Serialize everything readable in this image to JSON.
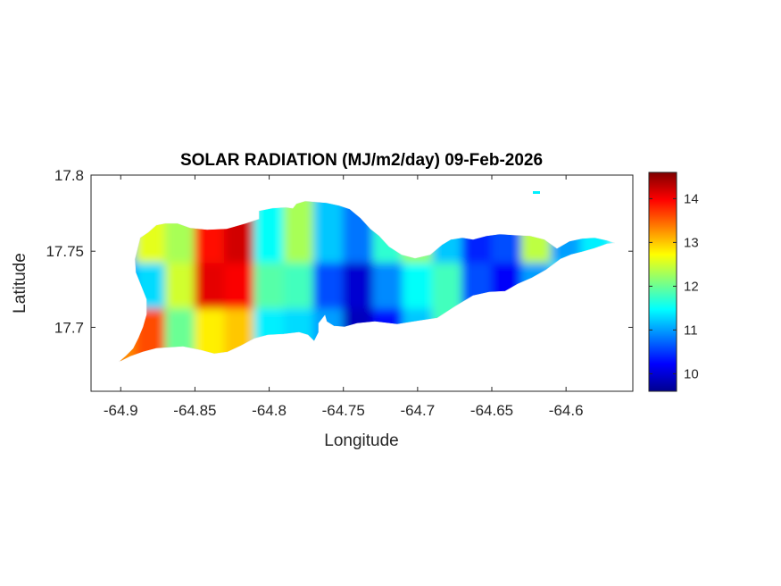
{
  "chart_data": {
    "type": "heatmap",
    "title": "SOLAR RADIATION (MJ/m2/day) 09-Feb-2026",
    "xlabel": "Longitude",
    "ylabel": "Latitude",
    "xlim": [
      -64.92,
      -64.555
    ],
    "ylim": [
      17.658,
      17.8
    ],
    "xticks": [
      -64.9,
      -64.85,
      -64.8,
      -64.75,
      -64.7,
      -64.65,
      -64.6
    ],
    "xtick_labels": [
      "-64.9",
      "-64.85",
      "-64.8",
      "-64.75",
      "-64.7",
      "-64.65",
      "-64.6"
    ],
    "yticks": [
      17.7,
      17.75,
      17.8
    ],
    "ytick_labels": [
      "17.7",
      "17.75",
      "17.8"
    ],
    "colorbar": {
      "colormap": "jet",
      "clim": [
        9.6,
        14.6
      ],
      "ticks": [
        10,
        11,
        12,
        13,
        14
      ],
      "tick_labels": [
        "10",
        "11",
        "12",
        "13",
        "14"
      ]
    },
    "grid": false,
    "values_by_longitude": {
      "lon": [
        -64.9,
        -64.88,
        -64.86,
        -64.84,
        -64.82,
        -64.8,
        -64.78,
        -64.76,
        -64.74,
        -64.72,
        -64.7,
        -64.68,
        -64.66,
        -64.64,
        -64.62,
        -64.6,
        -64.58
      ],
      "north": [
        11.0,
        12.6,
        12.3,
        13.9,
        14.2,
        11.5,
        12.3,
        11.2,
        10.8,
        11.7,
        12.2,
        11.2,
        10.4,
        10.6,
        12.4,
        11.0,
        11.4
      ],
      "middle": [
        10.8,
        11.3,
        12.5,
        14.1,
        14.0,
        11.9,
        11.8,
        10.6,
        10.0,
        10.9,
        11.5,
        11.8,
        10.6,
        10.2,
        11.0,
        11.4,
        11.4
      ],
      "south": [
        13.3,
        13.6,
        12.0,
        12.8,
        13.0,
        11.4,
        11.3,
        11.0,
        9.9,
        10.3,
        11.2,
        11.8,
        11.5,
        11.2,
        11.3,
        11.4,
        11.4
      ]
    }
  }
}
